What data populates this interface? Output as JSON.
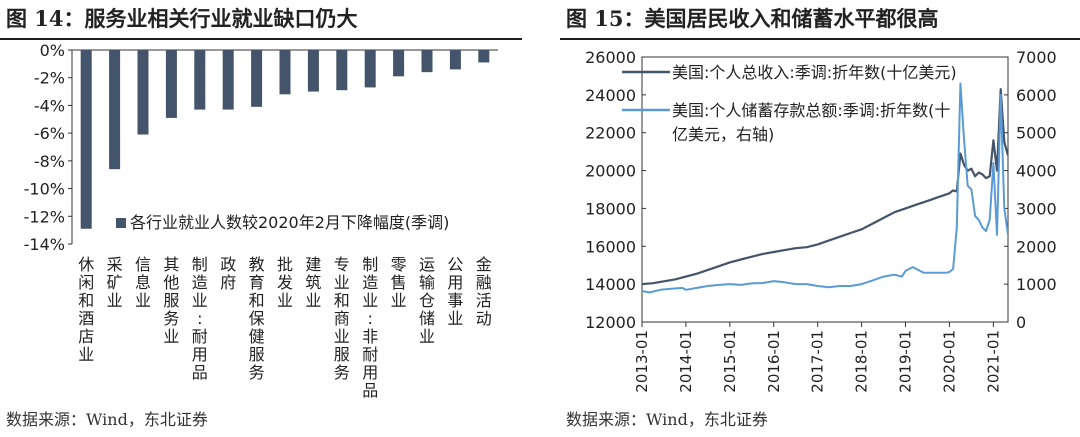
{
  "figures": [
    {
      "title": "图 14：服务业相关行业就业缺口仍大",
      "source": "数据来源：Wind，东北证券"
    },
    {
      "title": "图 15：美国居民收入和储蓄水平都很高",
      "source": "数据来源：Wind，东北证券"
    }
  ],
  "chart_data": [
    {
      "type": "bar",
      "categories": [
        "休闲和酒店业",
        "采矿业",
        "信息业",
        "其他服务业",
        "制造业:耐用品",
        "政府",
        "教育和保健服务",
        "批发业",
        "建筑业",
        "专业和商业服务",
        "制造业:非耐用品",
        "零售业",
        "运输仓储业",
        "公用事业",
        "金融活动"
      ],
      "series": [
        {
          "name": "各行业就业人数较2020年2月下降幅度(季调)",
          "values": [
            -12.9,
            -8.6,
            -6.1,
            -4.9,
            -4.3,
            -4.3,
            -4.1,
            -3.2,
            -3.0,
            -2.9,
            -2.7,
            -1.9,
            -1.6,
            -1.4,
            -0.9
          ]
        }
      ],
      "yticks": [
        "0%",
        "-2%",
        "-4%",
        "-6%",
        "-8%",
        "-10%",
        "-12%",
        "-14%"
      ],
      "ylim": [
        -14,
        0
      ],
      "legend_position": "bottom-right",
      "grid": false,
      "colors": {
        "bar": "#44546a"
      }
    },
    {
      "type": "line",
      "x_ticks": [
        "2013-01",
        "2014-01",
        "2015-01",
        "2016-01",
        "2017-01",
        "2018-01",
        "2019-01",
        "2020-01",
        "2021-01"
      ],
      "x_range": [
        "2013-01",
        "2021-05"
      ],
      "y_left": {
        "ticks": [
          "12000",
          "14000",
          "16000",
          "18000",
          "20000",
          "22000",
          "24000",
          "26000"
        ],
        "range": [
          12000,
          26000
        ]
      },
      "y_right": {
        "ticks": [
          "0",
          "1000",
          "2000",
          "3000",
          "4000",
          "5000",
          "6000",
          "7000"
        ],
        "range": [
          0,
          7000
        ]
      },
      "legend_position": "top-left",
      "grid": false,
      "series": [
        {
          "name": "美国:个人总收入:季调:折年数(十亿美元)",
          "axis": "left",
          "color": "#44546a",
          "points": [
            [
              "2013-01",
              14000
            ],
            [
              "2013-04",
              14050
            ],
            [
              "2013-07",
              14150
            ],
            [
              "2013-10",
              14250
            ],
            [
              "2014-01",
              14400
            ],
            [
              "2014-04",
              14550
            ],
            [
              "2014-07",
              14750
            ],
            [
              "2014-10",
              14950
            ],
            [
              "2015-01",
              15150
            ],
            [
              "2015-04",
              15300
            ],
            [
              "2015-07",
              15450
            ],
            [
              "2015-10",
              15600
            ],
            [
              "2016-01",
              15700
            ],
            [
              "2016-04",
              15800
            ],
            [
              "2016-07",
              15900
            ],
            [
              "2016-10",
              15950
            ],
            [
              "2017-01",
              16100
            ],
            [
              "2017-04",
              16300
            ],
            [
              "2017-07",
              16500
            ],
            [
              "2017-10",
              16700
            ],
            [
              "2018-01",
              16900
            ],
            [
              "2018-04",
              17200
            ],
            [
              "2018-07",
              17500
            ],
            [
              "2018-10",
              17800
            ],
            [
              "2019-01",
              18000
            ],
            [
              "2019-04",
              18200
            ],
            [
              "2019-07",
              18400
            ],
            [
              "2019-10",
              18600
            ],
            [
              "2020-01",
              18800
            ],
            [
              "2020-02",
              18950
            ],
            [
              "2020-03",
              18900
            ],
            [
              "2020-04",
              20900
            ],
            [
              "2020-05",
              20300
            ],
            [
              "2020-06",
              20000
            ],
            [
              "2020-07",
              20100
            ],
            [
              "2020-08",
              19700
            ],
            [
              "2020-09",
              19900
            ],
            [
              "2020-10",
              19800
            ],
            [
              "2020-11",
              19600
            ],
            [
              "2020-12",
              19700
            ],
            [
              "2021-01",
              21600
            ],
            [
              "2021-02",
              20000
            ],
            [
              "2021-03",
              24300
            ],
            [
              "2021-04",
              21500
            ],
            [
              "2021-05",
              20800
            ]
          ]
        },
        {
          "name": "美国:个人储蓄存款总额:季调:折年数(十亿美元，右轴)",
          "axis": "right",
          "color": "#5b9bd5",
          "points": [
            [
              "2013-01",
              820
            ],
            [
              "2013-03",
              780
            ],
            [
              "2013-06",
              850
            ],
            [
              "2013-09",
              880
            ],
            [
              "2013-12",
              900
            ],
            [
              "2014-01",
              850
            ],
            [
              "2014-04",
              900
            ],
            [
              "2014-07",
              950
            ],
            [
              "2014-10",
              980
            ],
            [
              "2015-01",
              1000
            ],
            [
              "2015-04",
              980
            ],
            [
              "2015-07",
              1020
            ],
            [
              "2015-10",
              1030
            ],
            [
              "2016-01",
              1080
            ],
            [
              "2016-04",
              1050
            ],
            [
              "2016-07",
              1000
            ],
            [
              "2016-10",
              1000
            ],
            [
              "2017-01",
              950
            ],
            [
              "2017-04",
              920
            ],
            [
              "2017-07",
              950
            ],
            [
              "2017-10",
              950
            ],
            [
              "2018-01",
              1000
            ],
            [
              "2018-04",
              1100
            ],
            [
              "2018-07",
              1200
            ],
            [
              "2018-10",
              1250
            ],
            [
              "2018-12",
              1200
            ],
            [
              "2019-01",
              1350
            ],
            [
              "2019-03",
              1450
            ],
            [
              "2019-06",
              1300
            ],
            [
              "2019-09",
              1300
            ],
            [
              "2019-12",
              1300
            ],
            [
              "2020-01",
              1320
            ],
            [
              "2020-02",
              1400
            ],
            [
              "2020-03",
              2500
            ],
            [
              "2020-04",
              6300
            ],
            [
              "2020-05",
              4800
            ],
            [
              "2020-06",
              3600
            ],
            [
              "2020-07",
              3500
            ],
            [
              "2020-08",
              2800
            ],
            [
              "2020-09",
              2700
            ],
            [
              "2020-10",
              2500
            ],
            [
              "2020-11",
              2400
            ],
            [
              "2020-12",
              2700
            ],
            [
              "2021-01",
              4200
            ],
            [
              "2021-02",
              2300
            ],
            [
              "2021-03",
              6000
            ],
            [
              "2021-04",
              3000
            ],
            [
              "2021-05",
              2300
            ]
          ]
        }
      ]
    }
  ]
}
